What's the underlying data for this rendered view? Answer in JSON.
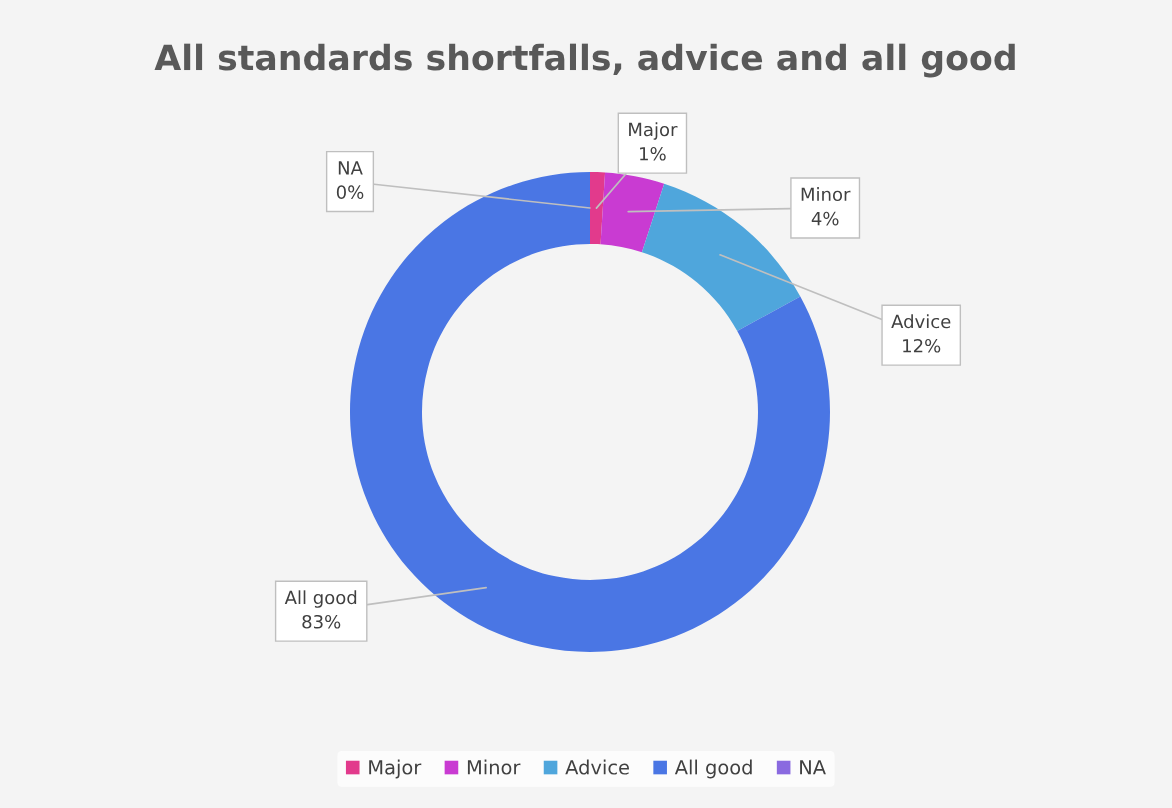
{
  "chart_data": {
    "type": "donut",
    "title": "All standards shortfalls, advice and all good",
    "categories": [
      "Major",
      "Minor",
      "Advice",
      "All good",
      "NA"
    ],
    "values": [
      1,
      4,
      12,
      83,
      0
    ],
    "value_labels": [
      "1%",
      "4%",
      "12%",
      "83%",
      "0%"
    ],
    "colors": [
      "#e23a8c",
      "#c93bd2",
      "#4fa6dc",
      "#4a76e4",
      "#8a6ae0"
    ],
    "legend": "bottom"
  }
}
